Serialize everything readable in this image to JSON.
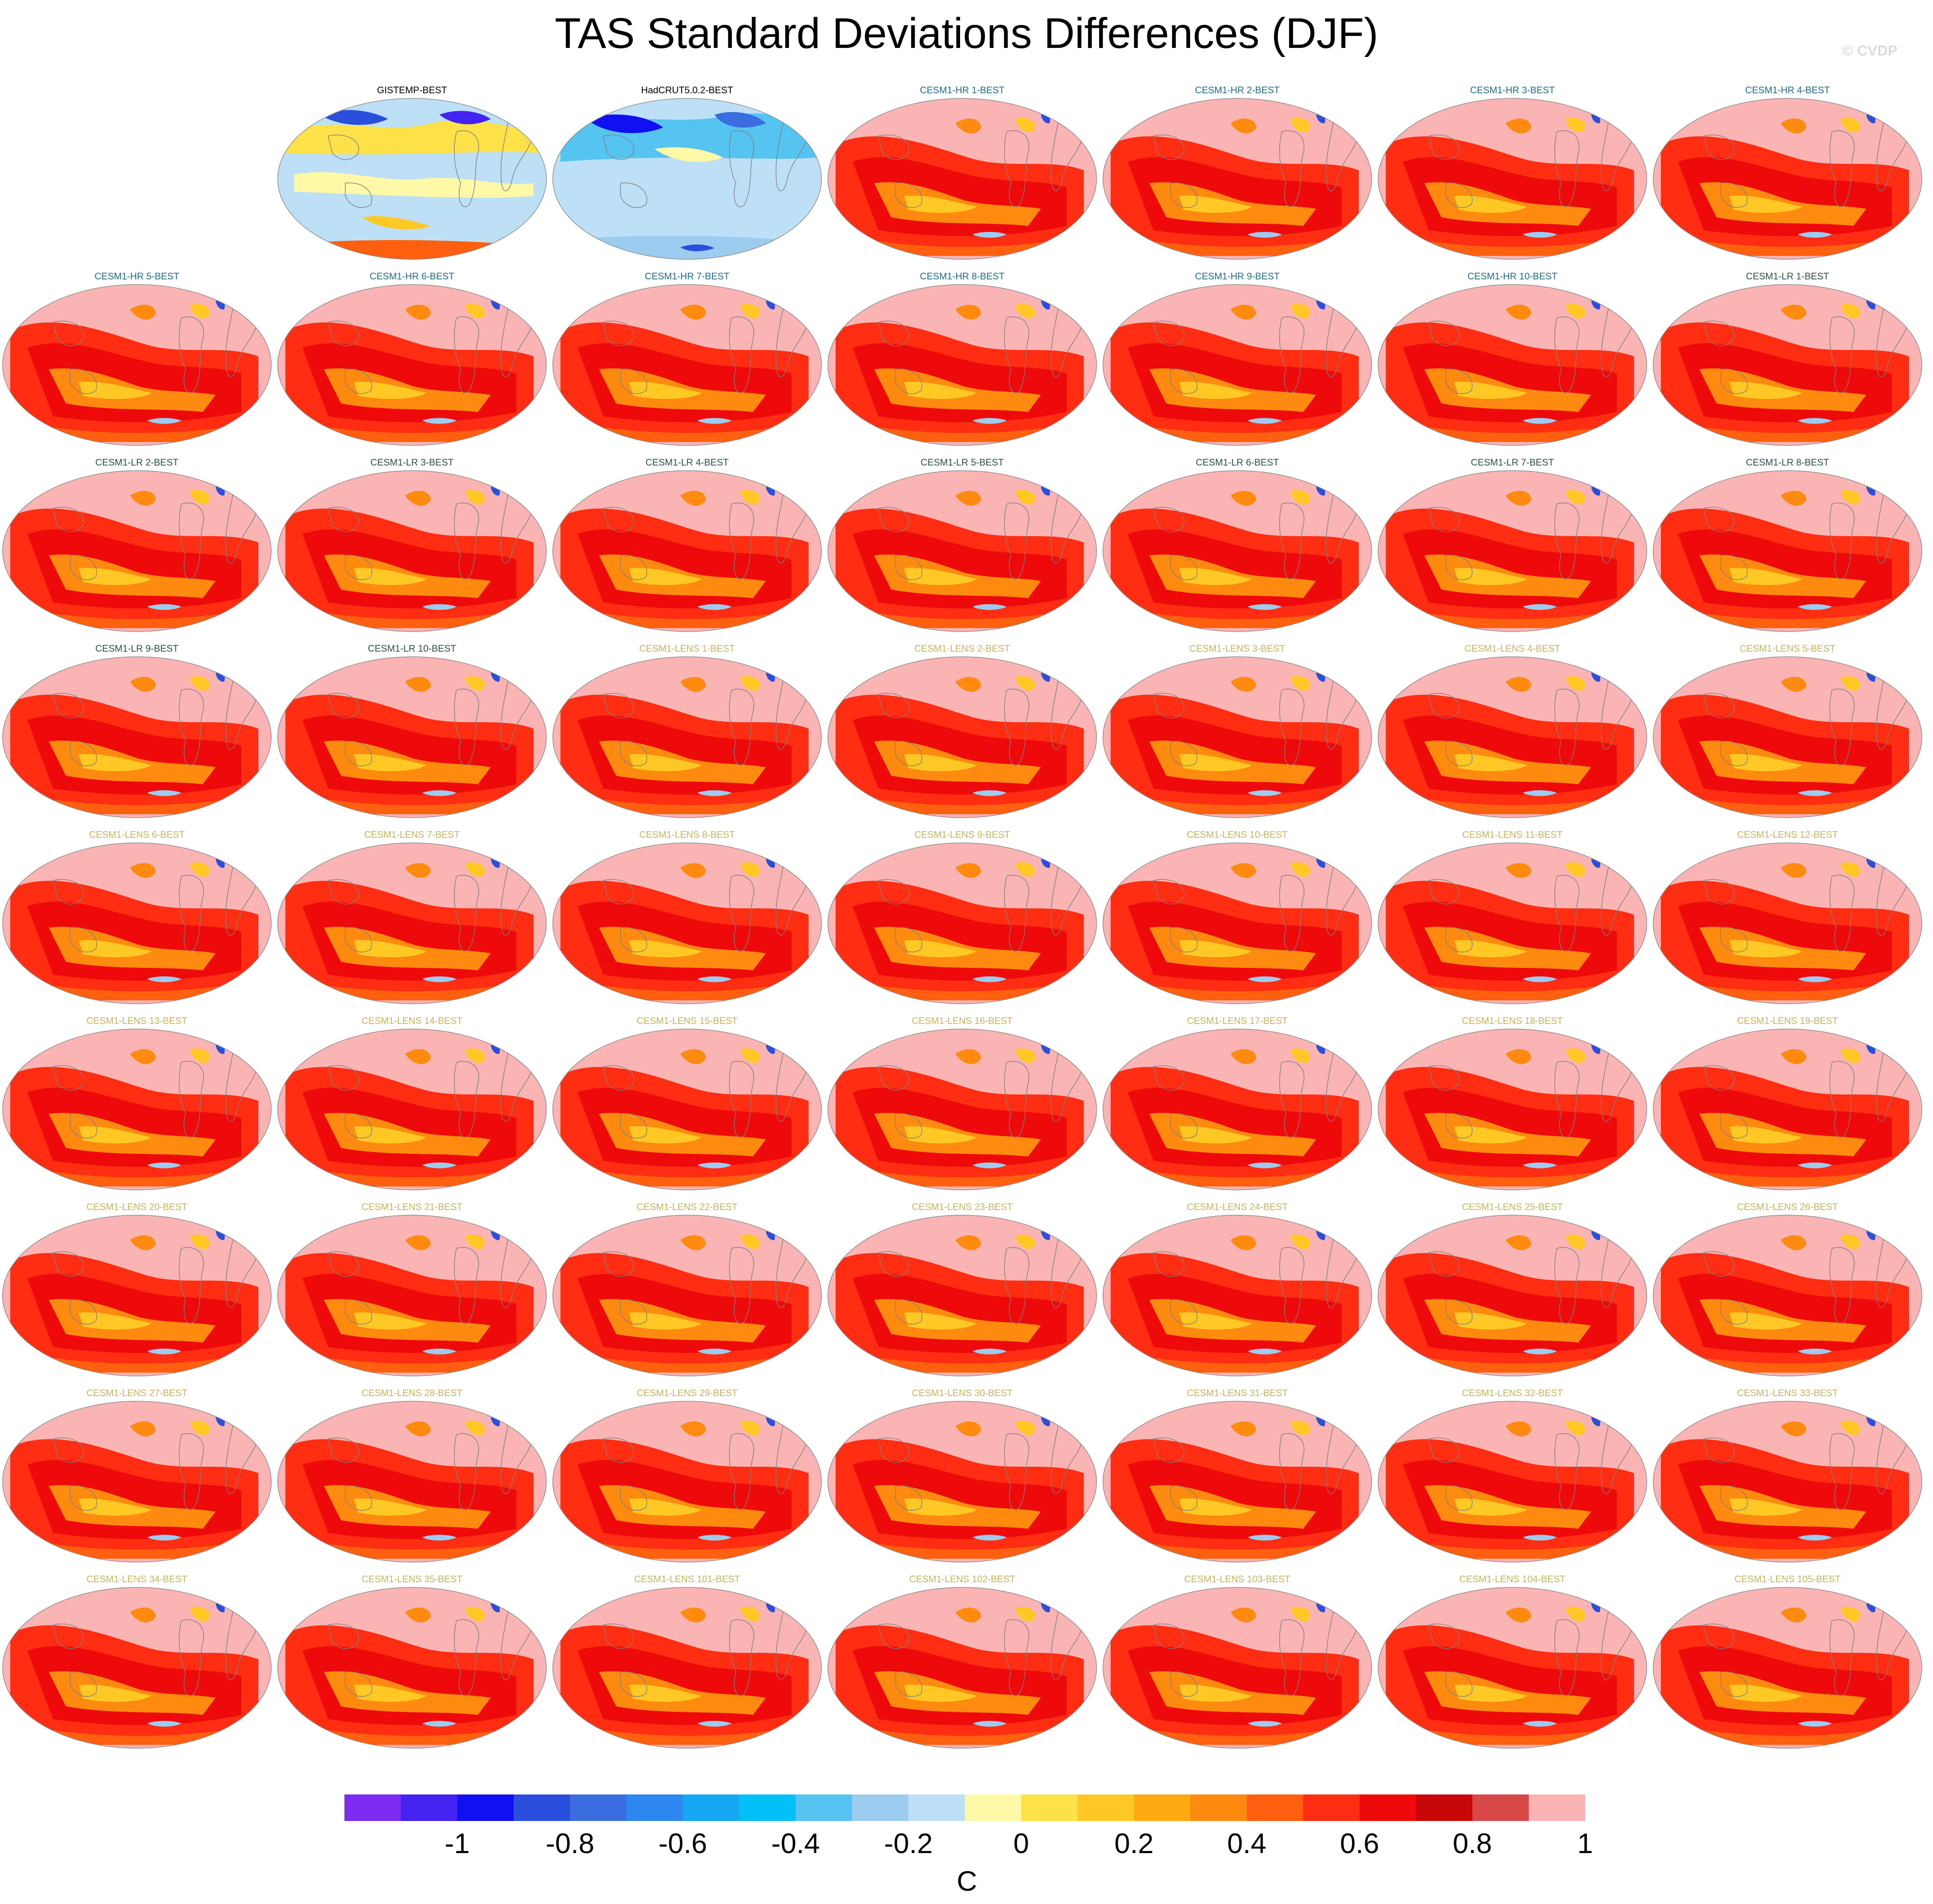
{
  "title": "TAS Standard Deviations Differences (DJF)",
  "watermark": "© CVDP",
  "colors": {
    "obs_title": "#000000",
    "hr_title": "#1f6f8b",
    "lr_title": "#2f4f4f",
    "lens_title": "#c8b560"
  },
  "panels": [
    {
      "label": "GISTEMP-BEST",
      "group": "obs",
      "style": "obs-mixed"
    },
    {
      "label": "HadCRUT5.0.2-BEST",
      "group": "obs",
      "style": "obs-blue"
    },
    {
      "label": "CESM1-HR 1-BEST",
      "group": "hr",
      "style": "model"
    },
    {
      "label": "CESM1-HR 2-BEST",
      "group": "hr",
      "style": "model"
    },
    {
      "label": "CESM1-HR 3-BEST",
      "group": "hr",
      "style": "model"
    },
    {
      "label": "CESM1-HR 4-BEST",
      "group": "hr",
      "style": "model"
    },
    {
      "label": "CESM1-HR 5-BEST",
      "group": "hr",
      "style": "model"
    },
    {
      "label": "CESM1-HR 6-BEST",
      "group": "hr",
      "style": "model"
    },
    {
      "label": "CESM1-HR 7-BEST",
      "group": "hr",
      "style": "model"
    },
    {
      "label": "CESM1-HR 8-BEST",
      "group": "hr",
      "style": "model"
    },
    {
      "label": "CESM1-HR 9-BEST",
      "group": "hr",
      "style": "model"
    },
    {
      "label": "CESM1-HR 10-BEST",
      "group": "hr",
      "style": "model"
    },
    {
      "label": "CESM1-LR 1-BEST",
      "group": "lr",
      "style": "model"
    },
    {
      "label": "CESM1-LR 2-BEST",
      "group": "lr",
      "style": "model"
    },
    {
      "label": "CESM1-LR 3-BEST",
      "group": "lr",
      "style": "model"
    },
    {
      "label": "CESM1-LR 4-BEST",
      "group": "lr",
      "style": "model"
    },
    {
      "label": "CESM1-LR 5-BEST",
      "group": "lr",
      "style": "model"
    },
    {
      "label": "CESM1-LR 6-BEST",
      "group": "lr",
      "style": "model"
    },
    {
      "label": "CESM1-LR 7-BEST",
      "group": "lr",
      "style": "model"
    },
    {
      "label": "CESM1-LR 8-BEST",
      "group": "lr",
      "style": "model"
    },
    {
      "label": "CESM1-LR 9-BEST",
      "group": "lr",
      "style": "model"
    },
    {
      "label": "CESM1-LR 10-BEST",
      "group": "lr",
      "style": "model"
    },
    {
      "label": "CESM1-LENS 1-BEST",
      "group": "lens",
      "style": "model"
    },
    {
      "label": "CESM1-LENS 2-BEST",
      "group": "lens",
      "style": "model"
    },
    {
      "label": "CESM1-LENS 3-BEST",
      "group": "lens",
      "style": "model"
    },
    {
      "label": "CESM1-LENS 4-BEST",
      "group": "lens",
      "style": "model"
    },
    {
      "label": "CESM1-LENS 5-BEST",
      "group": "lens",
      "style": "model"
    },
    {
      "label": "CESM1-LENS 6-BEST",
      "group": "lens",
      "style": "model"
    },
    {
      "label": "CESM1-LENS 7-BEST",
      "group": "lens",
      "style": "model"
    },
    {
      "label": "CESM1-LENS 8-BEST",
      "group": "lens",
      "style": "model"
    },
    {
      "label": "CESM1-LENS 9-BEST",
      "group": "lens",
      "style": "model"
    },
    {
      "label": "CESM1-LENS 10-BEST",
      "group": "lens",
      "style": "model"
    },
    {
      "label": "CESM1-LENS 11-BEST",
      "group": "lens",
      "style": "model"
    },
    {
      "label": "CESM1-LENS 12-BEST",
      "group": "lens",
      "style": "model"
    },
    {
      "label": "CESM1-LENS 13-BEST",
      "group": "lens",
      "style": "model"
    },
    {
      "label": "CESM1-LENS 14-BEST",
      "group": "lens",
      "style": "model"
    },
    {
      "label": "CESM1-LENS 15-BEST",
      "group": "lens",
      "style": "model"
    },
    {
      "label": "CESM1-LENS 16-BEST",
      "group": "lens",
      "style": "model"
    },
    {
      "label": "CESM1-LENS 17-BEST",
      "group": "lens",
      "style": "model"
    },
    {
      "label": "CESM1-LENS 18-BEST",
      "group": "lens",
      "style": "model"
    },
    {
      "label": "CESM1-LENS 19-BEST",
      "group": "lens",
      "style": "model"
    },
    {
      "label": "CESM1-LENS 20-BEST",
      "group": "lens",
      "style": "model"
    },
    {
      "label": "CESM1-LENS 21-BEST",
      "group": "lens",
      "style": "model"
    },
    {
      "label": "CESM1-LENS 22-BEST",
      "group": "lens",
      "style": "model"
    },
    {
      "label": "CESM1-LENS 23-BEST",
      "group": "lens",
      "style": "model"
    },
    {
      "label": "CESM1-LENS 24-BEST",
      "group": "lens",
      "style": "model"
    },
    {
      "label": "CESM1-LENS 25-BEST",
      "group": "lens",
      "style": "model"
    },
    {
      "label": "CESM1-LENS 26-BEST",
      "group": "lens",
      "style": "model"
    },
    {
      "label": "CESM1-LENS 27-BEST",
      "group": "lens",
      "style": "model"
    },
    {
      "label": "CESM1-LENS 28-BEST",
      "group": "lens",
      "style": "model"
    },
    {
      "label": "CESM1-LENS 29-BEST",
      "group": "lens",
      "style": "model"
    },
    {
      "label": "CESM1-LENS 30-BEST",
      "group": "lens",
      "style": "model"
    },
    {
      "label": "CESM1-LENS 31-BEST",
      "group": "lens",
      "style": "model"
    },
    {
      "label": "CESM1-LENS 32-BEST",
      "group": "lens",
      "style": "model"
    },
    {
      "label": "CESM1-LENS 33-BEST",
      "group": "lens",
      "style": "model"
    },
    {
      "label": "CESM1-LENS 34-BEST",
      "group": "lens",
      "style": "model"
    },
    {
      "label": "CESM1-LENS 35-BEST",
      "group": "lens",
      "style": "model"
    },
    {
      "label": "CESM1-LENS 101-BEST",
      "group": "lens",
      "style": "model"
    },
    {
      "label": "CESM1-LENS 102-BEST",
      "group": "lens",
      "style": "model"
    },
    {
      "label": "CESM1-LENS 103-BEST",
      "group": "lens",
      "style": "model"
    },
    {
      "label": "CESM1-LENS 104-BEST",
      "group": "lens",
      "style": "model"
    },
    {
      "label": "CESM1-LENS 105-BEST",
      "group": "lens",
      "style": "model"
    }
  ],
  "colorbar": {
    "colors": [
      "#7b2cf0",
      "#4422f0",
      "#1010f0",
      "#2a4fdc",
      "#3a6ee0",
      "#2e86f0",
      "#16a6f2",
      "#00c0f8",
      "#56c4f0",
      "#9ccdf0",
      "#bde0f6",
      "#fff8a6",
      "#ffe24a",
      "#ffc825",
      "#ffaa10",
      "#ff8a10",
      "#ff6010",
      "#ff2e12",
      "#ee0a0a",
      "#c80808",
      "#d84848",
      "#fab4b4"
    ],
    "tick_labels": [
      "-1",
      "-0.8",
      "-0.6",
      "-0.4",
      "-0.2",
      "0",
      "0.2",
      "0.4",
      "0.6",
      "0.8",
      "1"
    ],
    "unit": "C"
  }
}
